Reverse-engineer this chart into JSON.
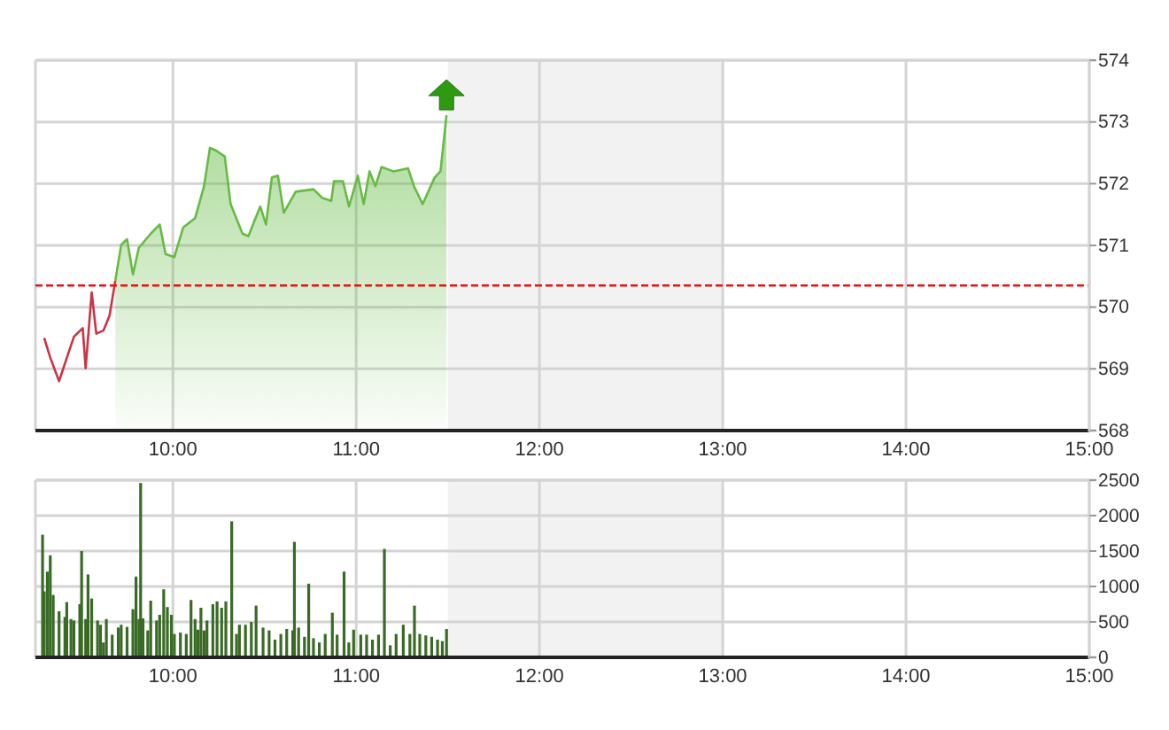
{
  "chart_data": [
    {
      "type": "line",
      "xlim": [
        9.25,
        15
      ],
      "xticks": [
        {
          "value": 10,
          "label": "10:00"
        },
        {
          "value": 11,
          "label": "11:00"
        },
        {
          "value": 12,
          "label": "12:00"
        },
        {
          "value": 13,
          "label": "13:00"
        },
        {
          "value": 14,
          "label": "14:00"
        },
        {
          "value": 15,
          "label": "15:00"
        }
      ],
      "ylim": [
        568,
        574
      ],
      "yticks": [
        568,
        569,
        570,
        571,
        572,
        573,
        574
      ],
      "grid": true,
      "ref_lines": [
        {
          "axis": "y",
          "value": 570.35,
          "color": "#ee1111",
          "line_style": "dashed"
        }
      ],
      "bands": [
        {
          "axis": "x",
          "from": 11.5,
          "to": 13,
          "color": "#f2f2f2"
        }
      ],
      "series": [
        {
          "type": "line",
          "color": "#cc3344",
          "x": [
            9.298,
            9.33,
            9.379,
            9.427,
            9.46,
            9.508,
            9.524,
            9.557,
            9.582,
            9.621,
            9.654,
            9.686
          ],
          "values": [
            569.5,
            569.19,
            568.8,
            569.23,
            569.52,
            569.66,
            569.01,
            570.24,
            569.57,
            569.62,
            569.86,
            570.43
          ]
        },
        {
          "type": "area",
          "color": "#66bb44",
          "x": [
            9.686,
            9.718,
            9.75,
            9.782,
            9.814,
            9.879,
            9.928,
            9.96,
            10.008,
            10.056,
            10.121,
            10.17,
            10.202,
            10.235,
            10.283,
            10.315,
            10.38,
            10.412,
            10.444,
            10.477,
            10.508,
            10.54,
            10.573,
            10.605,
            10.67,
            10.767,
            10.815,
            10.864,
            10.879,
            10.928,
            10.961,
            11.009,
            11.041,
            11.073,
            11.105,
            11.138,
            11.203,
            11.283,
            11.315,
            11.363,
            11.428,
            11.46,
            11.493
          ],
          "values": [
            570.43,
            571.01,
            571.1,
            570.53,
            570.96,
            571.19,
            571.34,
            570.86,
            570.81,
            571.29,
            571.44,
            571.96,
            572.58,
            572.54,
            572.44,
            571.67,
            571.19,
            571.15,
            571.39,
            571.63,
            571.34,
            572.1,
            572.13,
            571.53,
            571.87,
            571.91,
            571.77,
            571.72,
            572.04,
            572.04,
            571.63,
            572.13,
            571.67,
            572.2,
            571.96,
            572.27,
            572.2,
            572.25,
            571.96,
            571.67,
            572.1,
            572.2,
            573.11
          ]
        }
      ]
    },
    {
      "type": "bar",
      "xlim": [
        9.25,
        15
      ],
      "xticks": [
        {
          "value": 10,
          "label": "10:00"
        },
        {
          "value": 11,
          "label": "11:00"
        },
        {
          "value": 12,
          "label": "12:00"
        },
        {
          "value": 13,
          "label": "13:00"
        },
        {
          "value": 14,
          "label": "14:00"
        },
        {
          "value": 15,
          "label": "15:00"
        }
      ],
      "ylim": [
        0,
        2500
      ],
      "yticks": [
        0,
        500,
        1000,
        1500,
        2000,
        2500
      ],
      "grid": true,
      "bands": [
        {
          "axis": "x",
          "from": 11.5,
          "to": 13,
          "color": "#f2f2f2"
        }
      ],
      "series": [
        {
          "color": "#3a6b26",
          "x": [
            9.289,
            9.298,
            9.315,
            9.331,
            9.347,
            9.379,
            9.411,
            9.421,
            9.444,
            9.46,
            9.492,
            9.502,
            9.524,
            9.537,
            9.557,
            9.589,
            9.605,
            9.621,
            9.637,
            9.669,
            9.702,
            9.718,
            9.75,
            9.782,
            9.799,
            9.815,
            9.824,
            9.837,
            9.863,
            9.879,
            9.911,
            9.928,
            9.95,
            9.97,
            9.992,
            10.008,
            10.041,
            10.073,
            10.099,
            10.121,
            10.137,
            10.153,
            10.17,
            10.186,
            10.218,
            10.241,
            10.266,
            10.289,
            10.321,
            10.347,
            10.363,
            10.396,
            10.428,
            10.454,
            10.492,
            10.525,
            10.557,
            10.589,
            10.621,
            10.654,
            10.663,
            10.686,
            10.718,
            10.741,
            10.767,
            10.799,
            10.831,
            10.87,
            10.896,
            10.934,
            10.96,
            10.986,
            11.025,
            11.057,
            11.089,
            11.122,
            11.154,
            11.186,
            11.218,
            11.257,
            11.293,
            11.318,
            11.347,
            11.38,
            11.412,
            11.444,
            11.47,
            11.493
          ],
          "values": [
            1730,
            930,
            1210,
            1440,
            880,
            650,
            570,
            780,
            540,
            520,
            750,
            1500,
            540,
            1170,
            830,
            520,
            460,
            210,
            540,
            320,
            420,
            460,
            430,
            680,
            1140,
            540,
            2460,
            550,
            380,
            800,
            520,
            600,
            960,
            710,
            600,
            330,
            350,
            330,
            810,
            540,
            390,
            700,
            380,
            520,
            750,
            790,
            700,
            790,
            1920,
            330,
            460,
            460,
            500,
            730,
            420,
            380,
            250,
            330,
            400,
            380,
            1630,
            420,
            290,
            1040,
            270,
            210,
            330,
            630,
            320,
            1210,
            210,
            390,
            320,
            320,
            250,
            320,
            1530,
            170,
            330,
            460,
            330,
            730,
            330,
            310,
            290,
            250,
            230,
            400
          ]
        }
      ]
    }
  ]
}
